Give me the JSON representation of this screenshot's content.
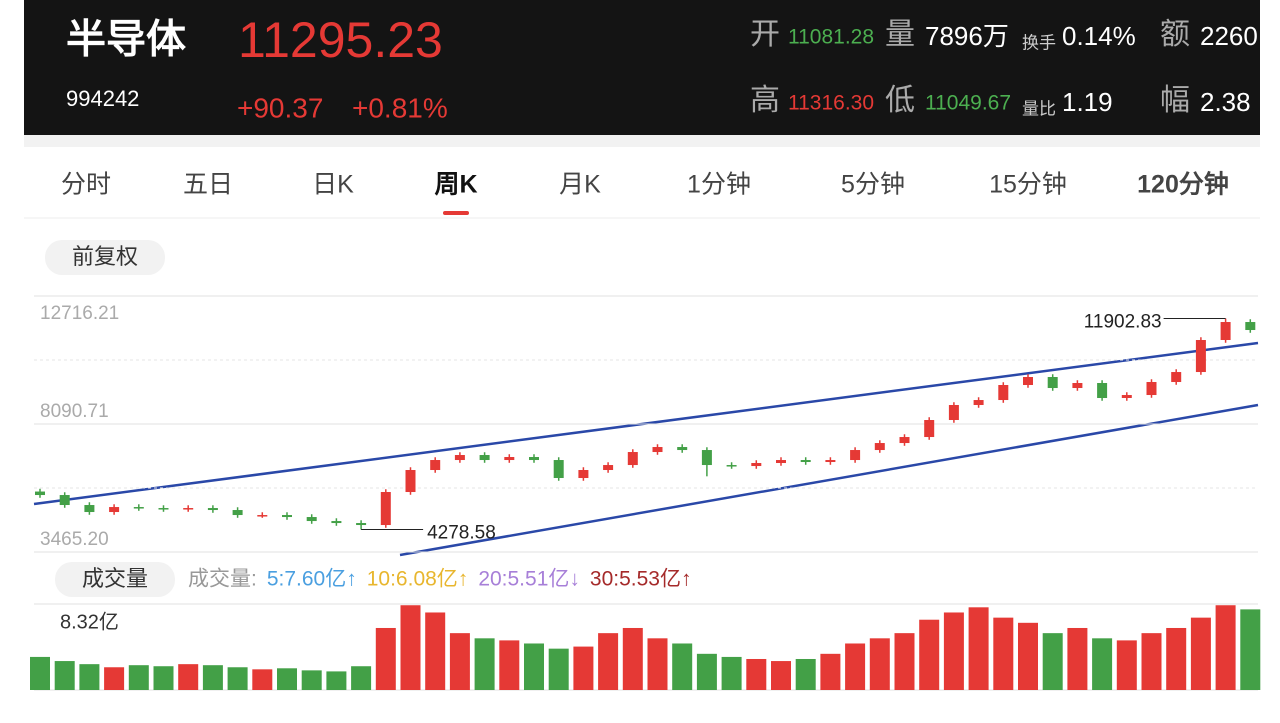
{
  "header": {
    "name": "半导体",
    "price": "11295.23",
    "code": "994242",
    "change": "+90.37",
    "change_pct": "+0.81%",
    "stats": [
      {
        "label": "开",
        "value": "11081.28",
        "color": "#4caf50"
      },
      {
        "label": "量",
        "value": "7896万",
        "color": "#ffffff"
      },
      {
        "label": "换手",
        "value": "0.14%",
        "color": "#ffffff"
      },
      {
        "label": "额",
        "value": "2260",
        "color": "#ffffff"
      },
      {
        "label": "高",
        "value": "11316.30",
        "color": "#e53935"
      },
      {
        "label": "低",
        "value": "11049.67",
        "color": "#4caf50"
      },
      {
        "label": "量比",
        "value": "1.19",
        "color": "#ffffff"
      },
      {
        "label": "幅",
        "value": "2.38",
        "color": "#ffffff"
      }
    ]
  },
  "tabs": [
    "分时",
    "五日",
    "日K",
    "周K",
    "月K",
    "1分钟",
    "5分钟",
    "15分钟",
    "120分钟"
  ],
  "adjust": "前复权",
  "volume_title": "成交量",
  "volume_legend": [
    {
      "text": "成交量:",
      "color": "#999999"
    },
    {
      "text": "5:7.60亿↑",
      "color": "#4a9fe0"
    },
    {
      "text": "10:6.08亿↑",
      "color": "#e8b62e"
    },
    {
      "text": "20:5.51亿↓",
      "color": "#a77fd8"
    },
    {
      "text": "30:5.53亿↑",
      "color": "#a52a2a"
    }
  ],
  "chart_data": [
    {
      "type": "candlestick",
      "up_color": "#e53935",
      "down_color": "#43a047",
      "open": [
        5650,
        5524,
        5163,
        4910,
        5090,
        5054,
        5018,
        5054,
        4982,
        4801,
        4801,
        4729,
        4584,
        4512,
        4440,
        5633,
        6428,
        6789,
        6970,
        6789,
        6898,
        6789,
        6139,
        6428,
        6608,
        7078,
        7259,
        7150,
        6608,
        6572,
        6681,
        6789,
        6717,
        6789,
        7150,
        7403,
        7620,
        8235,
        8777,
        8957,
        9500,
        9789,
        9391,
        9572,
        9030,
        9138,
        9608,
        9969,
        11126,
        11776
      ],
      "close": [
        5524,
        5163,
        4910,
        5090,
        5054,
        5018,
        5054,
        4982,
        4801,
        4801,
        4729,
        4584,
        4512,
        4440,
        5633,
        6428,
        6789,
        6970,
        6789,
        6898,
        6789,
        6139,
        6428,
        6608,
        7078,
        7259,
        7150,
        6608,
        6572,
        6681,
        6789,
        6717,
        6789,
        7150,
        7403,
        7620,
        8235,
        8777,
        8957,
        9500,
        9789,
        9391,
        9572,
        9030,
        9138,
        9608,
        9969,
        11126,
        11776,
        11487
      ],
      "high": [
        5750,
        5624,
        5263,
        5190,
        5190,
        5154,
        5154,
        5154,
        5082,
        4901,
        4901,
        4829,
        4684,
        4612,
        5733,
        6528,
        6889,
        7070,
        7070,
        6998,
        6998,
        6889,
        6528,
        6708,
        7178,
        7359,
        7359,
        7250,
        6708,
        6781,
        6889,
        6889,
        6889,
        7250,
        7503,
        7720,
        8335,
        8877,
        9057,
        9600,
        9889,
        9889,
        9672,
        9672,
        9238,
        9708,
        10069,
        11226,
        11902.83,
        11876
      ],
      "low": [
        5424,
        5063,
        4810,
        4810,
        4954,
        4918,
        4918,
        4882,
        4701,
        4701,
        4629,
        4484,
        4412,
        4278.58,
        4340,
        5533,
        6328,
        6689,
        6689,
        6689,
        6689,
        6039,
        6039,
        6328,
        6508,
        6978,
        7050,
        6200,
        6472,
        6472,
        6581,
        6617,
        6617,
        6689,
        7050,
        7303,
        7520,
        8135,
        8677,
        8857,
        9400,
        9291,
        9291,
        8930,
        8930,
        9038,
        9508,
        9869,
        11026,
        11387
      ],
      "ylim": [
        3465.2,
        12716.21
      ],
      "yticks": [
        {
          "value": 3465.2,
          "label": "3465.20"
        },
        8090.71,
        12716.21
      ]
    },
    {
      "type": "bar",
      "values": [
        3.2,
        2.8,
        2.5,
        2.2,
        2.4,
        2.3,
        2.5,
        2.4,
        2.2,
        2.0,
        2.1,
        1.9,
        1.8,
        2.3,
        6.0,
        8.2,
        7.5,
        5.5,
        5.0,
        4.8,
        4.5,
        4.0,
        4.2,
        5.5,
        6.0,
        5.0,
        4.5,
        3.5,
        3.2,
        3.0,
        2.8,
        3.0,
        3.5,
        4.5,
        5.0,
        5.5,
        6.8,
        7.5,
        8.0,
        7.0,
        6.5,
        5.5,
        6.0,
        5.0,
        4.8,
        5.5,
        6.0,
        7.0,
        8.2,
        7.8
      ],
      "ylim": [
        0,
        8.32
      ],
      "yticks": [
        0,
        {
          "value": 8.32,
          "label": "8.32亿"
        }
      ]
    }
  ]
}
